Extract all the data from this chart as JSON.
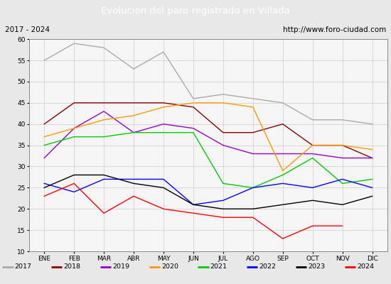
{
  "title": "Evolucion del paro registrado en Villada",
  "subtitle_left": "2017 - 2024",
  "subtitle_right": "http://www.foro-ciudad.com",
  "months": [
    "ENE",
    "FEB",
    "MAR",
    "ABR",
    "MAY",
    "JUN",
    "JUL",
    "AGO",
    "SEP",
    "OCT",
    "NOV",
    "DIC"
  ],
  "series": {
    "2017": {
      "color": "#aaaaaa",
      "data": [
        55,
        59,
        58,
        53,
        57,
        46,
        47,
        46,
        45,
        41,
        41,
        40
      ]
    },
    "2018": {
      "color": "#8b0000",
      "data": [
        40,
        45,
        45,
        45,
        45,
        44,
        38,
        38,
        40,
        35,
        35,
        32
      ]
    },
    "2019": {
      "color": "#9900cc",
      "data": [
        32,
        39,
        43,
        38,
        40,
        39,
        35,
        33,
        33,
        33,
        32,
        32
      ]
    },
    "2020": {
      "color": "#ff9900",
      "data": [
        37,
        39,
        41,
        42,
        44,
        45,
        45,
        44,
        29,
        35,
        35,
        34
      ]
    },
    "2021": {
      "color": "#00cc00",
      "data": [
        35,
        37,
        37,
        38,
        38,
        38,
        26,
        25,
        28,
        32,
        26,
        27
      ]
    },
    "2022": {
      "color": "#0000ff",
      "data": [
        26,
        24,
        27,
        27,
        27,
        21,
        22,
        25,
        26,
        25,
        27,
        25
      ]
    },
    "2023": {
      "color": "#000000",
      "data": [
        25,
        28,
        28,
        26,
        25,
        21,
        20,
        20,
        21,
        22,
        21,
        23
      ]
    },
    "2024": {
      "color": "#ff0000",
      "data": [
        23,
        26,
        19,
        23,
        20,
        19,
        18,
        18,
        13,
        16,
        16,
        null
      ]
    }
  },
  "ylim": [
    10,
    60
  ],
  "yticks": [
    10,
    15,
    20,
    25,
    30,
    35,
    40,
    45,
    50,
    55,
    60
  ],
  "bg_color": "#e8e8e8",
  "plot_bg_color": "#f5f5f5",
  "title_bg_color": "#4a7abf",
  "title_color": "#ffffff",
  "header_bg_color": "#e8e8e8",
  "header_border_color": "#4a7abf",
  "legend_bg_color": "#e8e8e8",
  "legend_border_color": "#4a7abf"
}
